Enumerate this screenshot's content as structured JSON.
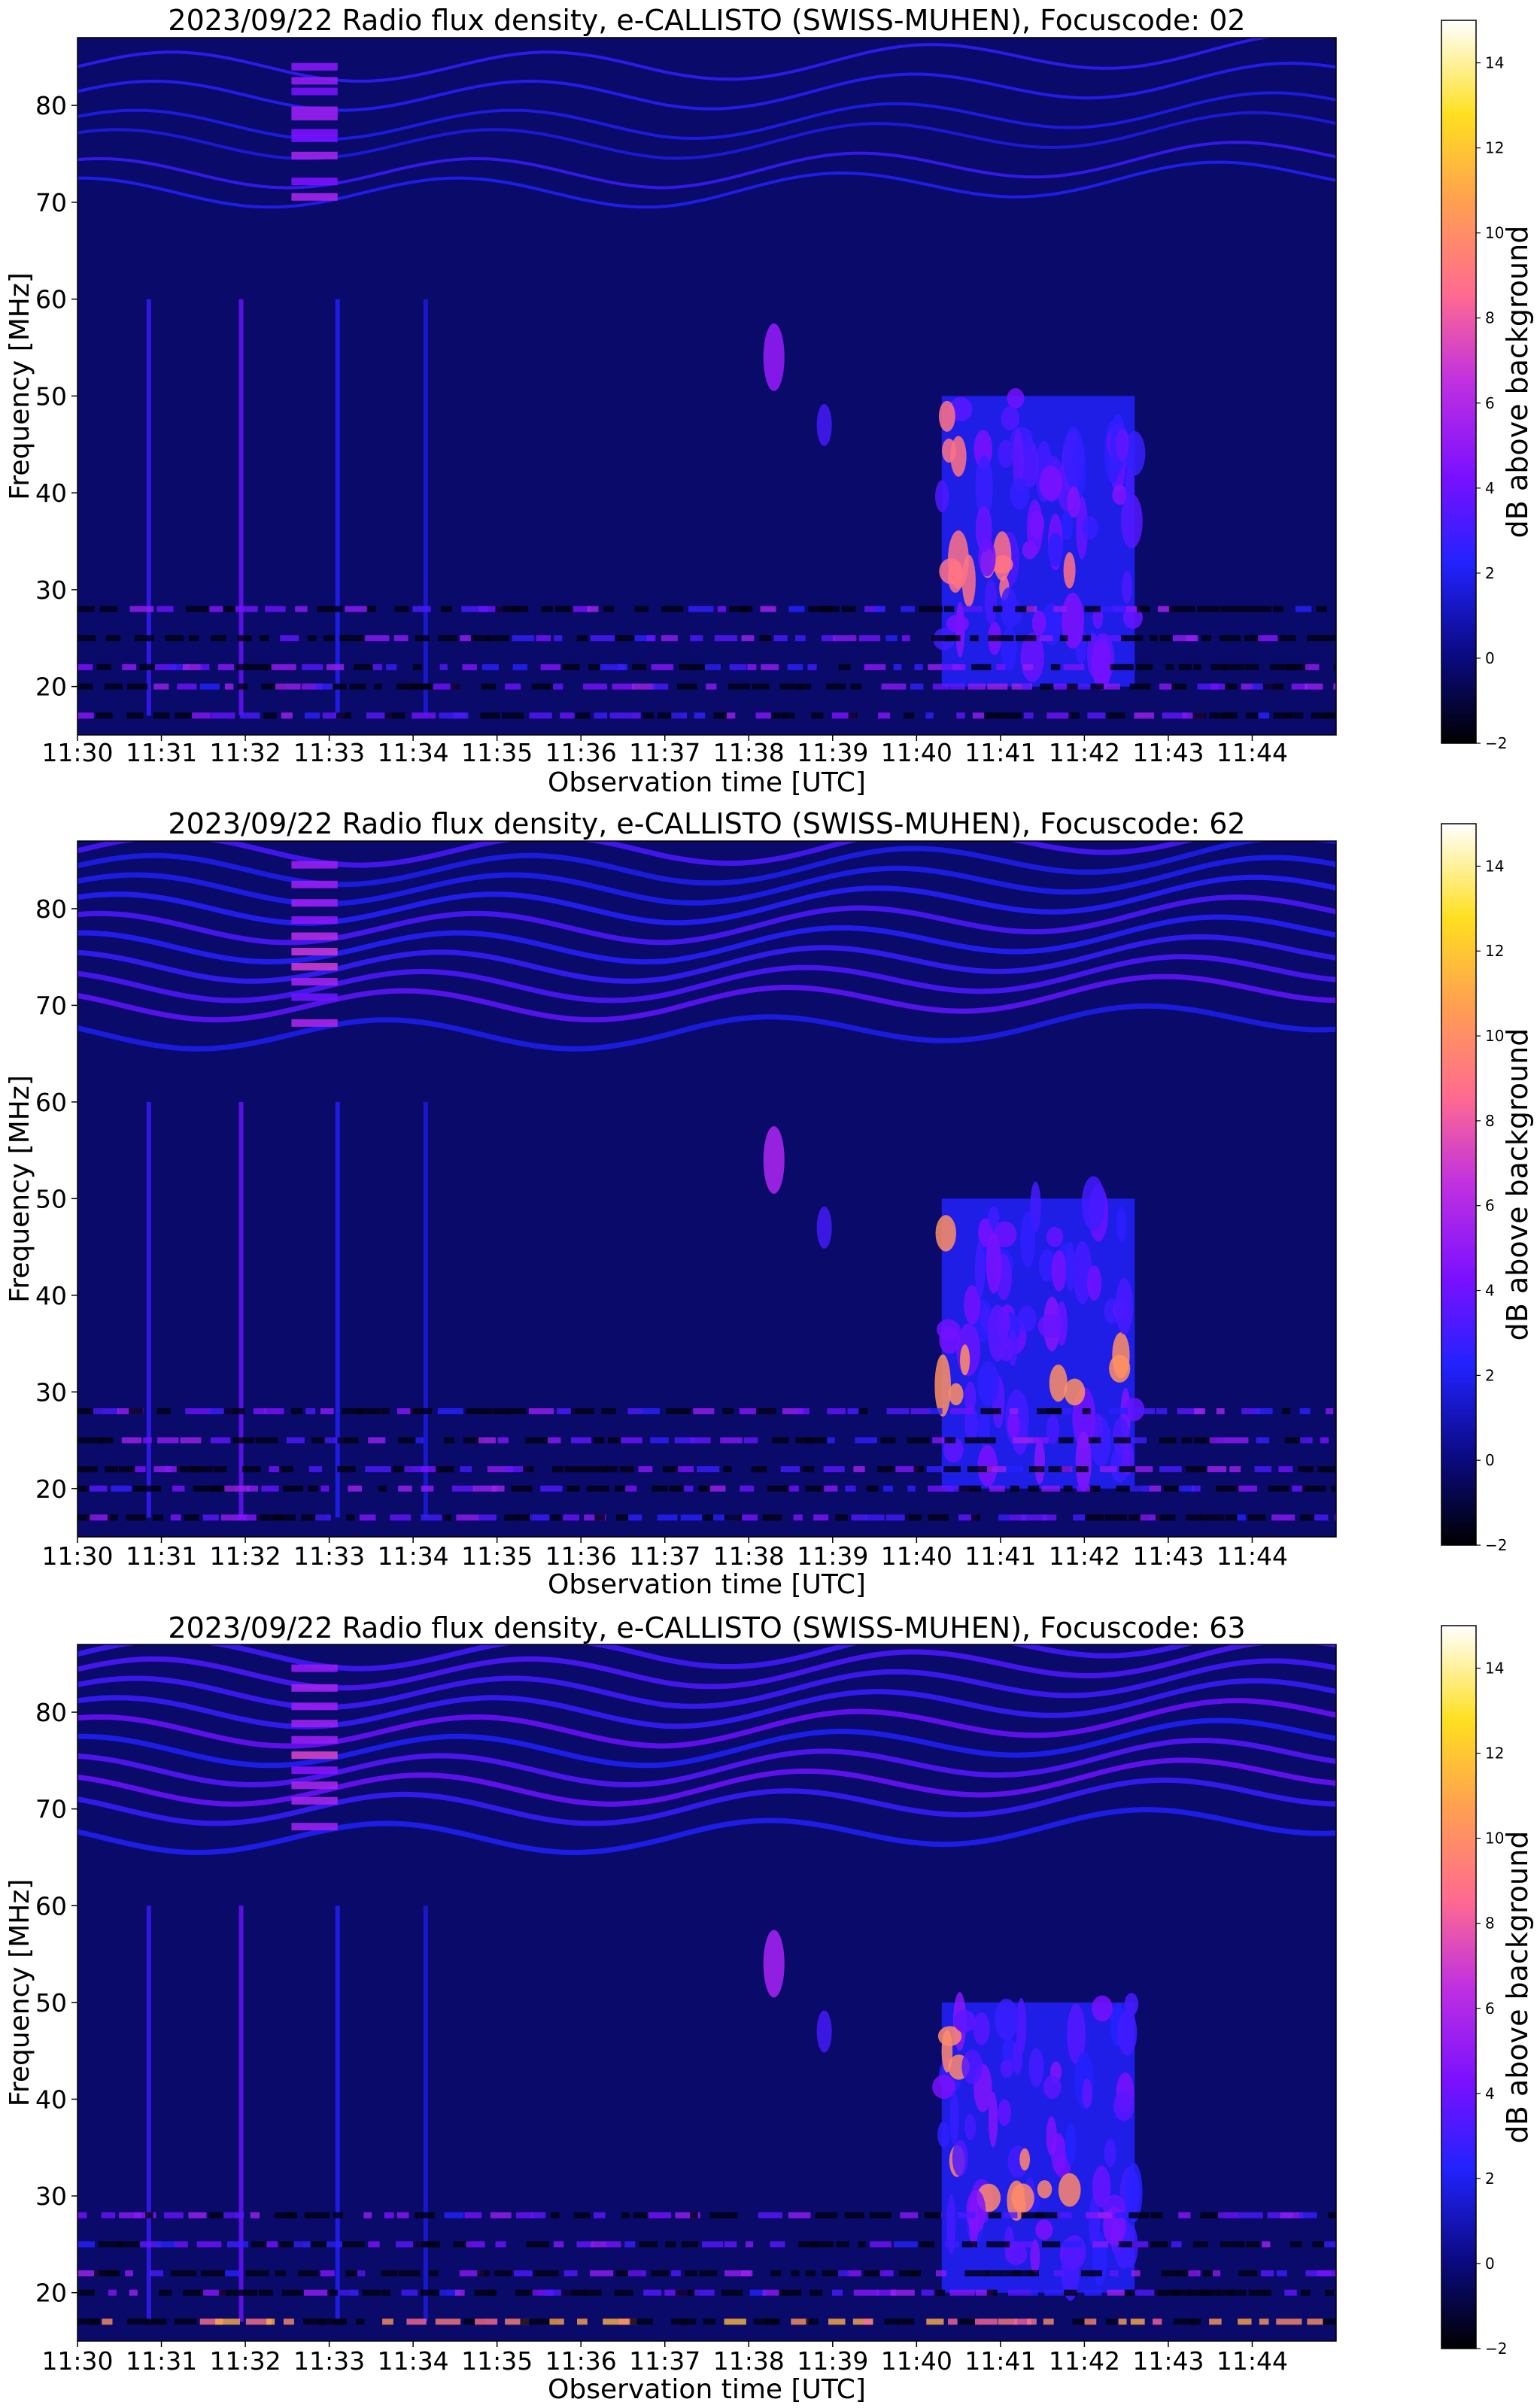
{
  "chart_data": [
    {
      "type": "heatmap",
      "title": "2023/09/22  Radio flux density, e-CALLISTO (SWISS-MUHEN), Focuscode: 02",
      "xlabel": "Observation time [UTC]",
      "ylabel": "Frequency [MHz]",
      "x_ticks": [
        "11:30",
        "11:31",
        "11:32",
        "11:33",
        "11:34",
        "11:35",
        "11:36",
        "11:37",
        "11:38",
        "11:39",
        "11:40",
        "11:41",
        "11:42",
        "11:43",
        "11:44"
      ],
      "xlim_minutes": [
        0,
        15
      ],
      "ylim": [
        15,
        87
      ],
      "y_ticks": [
        20,
        30,
        40,
        50,
        60,
        70,
        80
      ],
      "colorbar": {
        "label": "dB above background",
        "range": [
          -2,
          15
        ],
        "ticks": [
          -2,
          0,
          2,
          4,
          6,
          8,
          10,
          12,
          14
        ]
      },
      "colormap": "gnuplot2",
      "features": {
        "burst_start_minute": 10.3,
        "burst_intensity": 0.55,
        "band_intensity": 0.3
      }
    },
    {
      "type": "heatmap",
      "title": "2023/09/22  Radio flux density, e-CALLISTO (SWISS-MUHEN), Focuscode: 62",
      "xlabel": "Observation time [UTC]",
      "ylabel": "Frequency [MHz]",
      "x_ticks": [
        "11:30",
        "11:31",
        "11:32",
        "11:33",
        "11:34",
        "11:35",
        "11:36",
        "11:37",
        "11:38",
        "11:39",
        "11:40",
        "11:41",
        "11:42",
        "11:43",
        "11:44"
      ],
      "xlim_minutes": [
        0,
        15
      ],
      "ylim": [
        15,
        87
      ],
      "y_ticks": [
        20,
        30,
        40,
        50,
        60,
        70,
        80
      ],
      "colorbar": {
        "label": "dB above background",
        "range": [
          -2,
          15
        ],
        "ticks": [
          -2,
          0,
          2,
          4,
          6,
          8,
          10,
          12,
          14
        ]
      },
      "colormap": "gnuplot2",
      "features": {
        "burst_start_minute": 10.3,
        "burst_intensity": 0.75,
        "band_intensity": 0.55
      }
    },
    {
      "type": "heatmap",
      "title": "2023/09/22  Radio flux density, e-CALLISTO (SWISS-MUHEN), Focuscode: 63",
      "xlabel": "Observation time [UTC]",
      "ylabel": "Frequency [MHz]",
      "x_ticks": [
        "11:30",
        "11:31",
        "11:32",
        "11:33",
        "11:34",
        "11:35",
        "11:36",
        "11:37",
        "11:38",
        "11:39",
        "11:40",
        "11:41",
        "11:42",
        "11:43",
        "11:44"
      ],
      "xlim_minutes": [
        0,
        15
      ],
      "ylim": [
        15,
        87
      ],
      "y_ticks": [
        20,
        30,
        40,
        50,
        60,
        70,
        80
      ],
      "colorbar": {
        "label": "dB above background",
        "range": [
          -2,
          15
        ],
        "ticks": [
          -2,
          0,
          2,
          4,
          6,
          8,
          10,
          12,
          14
        ]
      },
      "colormap": "gnuplot2",
      "features": {
        "burst_start_minute": 10.3,
        "burst_intensity": 0.7,
        "band_intensity": 0.55
      }
    }
  ]
}
